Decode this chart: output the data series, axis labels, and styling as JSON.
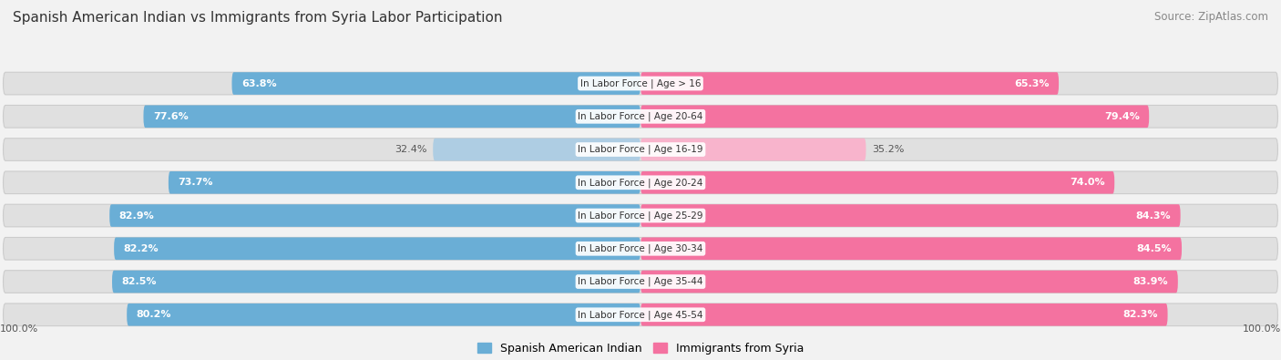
{
  "title": "Spanish American Indian vs Immigrants from Syria Labor Participation",
  "source": "Source: ZipAtlas.com",
  "categories": [
    "In Labor Force | Age > 16",
    "In Labor Force | Age 20-64",
    "In Labor Force | Age 16-19",
    "In Labor Force | Age 20-24",
    "In Labor Force | Age 25-29",
    "In Labor Force | Age 30-34",
    "In Labor Force | Age 35-44",
    "In Labor Force | Age 45-54"
  ],
  "left_values": [
    63.8,
    77.6,
    32.4,
    73.7,
    82.9,
    82.2,
    82.5,
    80.2
  ],
  "right_values": [
    65.3,
    79.4,
    35.2,
    74.0,
    84.3,
    84.5,
    83.9,
    82.3
  ],
  "left_color_full": "#6aaed6",
  "left_color_light": "#aecde3",
  "right_color_full": "#f472a0",
  "right_color_light": "#f8b4cc",
  "background_color": "#f2f2f2",
  "bar_bg_color": "#e0e0e0",
  "max_value": 100.0,
  "legend_left": "Spanish American Indian",
  "legend_right": "Immigrants from Syria",
  "title_fontsize": 11,
  "source_fontsize": 8.5,
  "bar_label_fontsize": 8,
  "cat_label_fontsize": 7.5
}
